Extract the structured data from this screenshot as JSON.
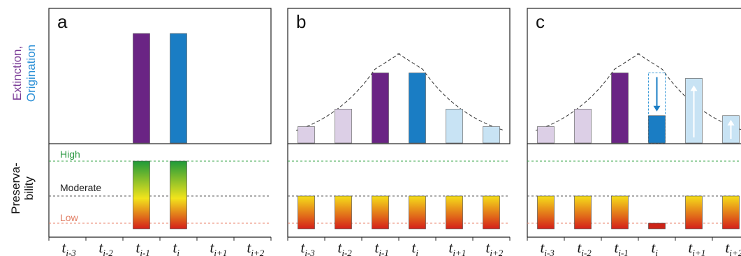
{
  "y_labels": {
    "extinction": "Extinction,",
    "origination": "Origination",
    "preservability_1": "Preserva-",
    "preservability_2": "bility"
  },
  "levels": {
    "high": "High",
    "moderate": "Moderate",
    "low": "Low"
  },
  "colors": {
    "extinction": "#6a2484",
    "origination": "#1a7dc4",
    "extinction_light": "#dccfe6",
    "origination_light": "#c8e3f4",
    "high_line": "#3aa64a",
    "moderate_line": "#555555",
    "low_line": "#e8826a",
    "high_text": "#2e9a45",
    "moderate_text": "#222222",
    "low_text": "#e07a5f",
    "ylab_extinction": "#7a3a96",
    "ylab_origination": "#2a8fd6"
  },
  "time_bins": [
    {
      "main": "t",
      "sub": "i-3"
    },
    {
      "main": "t",
      "sub": "i-2"
    },
    {
      "main": "t",
      "sub": "i-1"
    },
    {
      "main": "t",
      "sub": "i"
    },
    {
      "main": "t",
      "sub": "i+1"
    },
    {
      "main": "t",
      "sub": "i+2"
    }
  ],
  "panels": [
    {
      "letter": "a",
      "rates": [
        {
          "value": 0,
          "kind": "none"
        },
        {
          "value": 0,
          "kind": "none"
        },
        {
          "value": 1.0,
          "kind": "extinction"
        },
        {
          "value": 1.0,
          "kind": "origination"
        },
        {
          "value": 0,
          "kind": "none"
        },
        {
          "value": 0,
          "kind": "none"
        }
      ],
      "preservation": [
        null,
        null,
        "high",
        "high",
        null,
        null
      ],
      "show_curve": false,
      "arrows": []
    },
    {
      "letter": "b",
      "rates": [
        {
          "value": 0.15,
          "kind": "extinction_light"
        },
        {
          "value": 0.31,
          "kind": "extinction_light"
        },
        {
          "value": 0.64,
          "kind": "extinction"
        },
        {
          "value": 0.64,
          "kind": "origination"
        },
        {
          "value": 0.31,
          "kind": "origination_light"
        },
        {
          "value": 0.15,
          "kind": "origination_light"
        }
      ],
      "preservation": [
        "moderate",
        "moderate",
        "moderate",
        "moderate",
        "moderate",
        "moderate"
      ],
      "show_curve": true,
      "arrows": []
    },
    {
      "letter": "c",
      "rates": [
        {
          "value": 0.15,
          "kind": "extinction_light"
        },
        {
          "value": 0.31,
          "kind": "extinction_light"
        },
        {
          "value": 0.64,
          "kind": "extinction"
        },
        {
          "value": 0.25,
          "kind": "origination",
          "ghost": 0.64
        },
        {
          "value": 0.59,
          "kind": "origination_light"
        },
        {
          "value": 0.25,
          "kind": "origination_light"
        }
      ],
      "preservation": [
        "moderate",
        "moderate",
        "moderate",
        "low",
        "moderate",
        "moderate"
      ],
      "show_curve": true,
      "arrows": [
        {
          "bin": 3,
          "direction": "down",
          "color": "#1a7dc4"
        },
        {
          "bin": 4,
          "direction": "up",
          "color": "#ffffff"
        },
        {
          "bin": 5,
          "direction": "up",
          "color": "#ffffff"
        }
      ]
    }
  ]
}
